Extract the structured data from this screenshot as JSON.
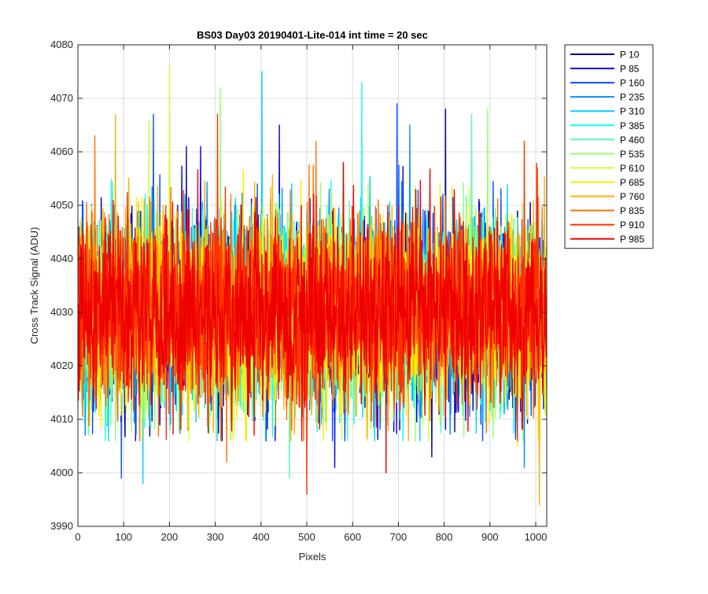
{
  "chart_data": {
    "type": "line",
    "title": "BS03 Day03 20190401-Lite-014 int time = 20 sec",
    "xlabel": "Pixels",
    "ylabel": "Cross Track Signal (ADU)",
    "xlim": [
      0,
      1024
    ],
    "ylim": [
      3990,
      4080
    ],
    "xticks": [
      "0",
      "100",
      "200",
      "300",
      "400",
      "500",
      "600",
      "700",
      "800",
      "900",
      "1000"
    ],
    "yticks": [
      "3990",
      "4000",
      "4010",
      "4020",
      "4030",
      "4040",
      "4050",
      "4060",
      "4070",
      "4080"
    ],
    "grid": true,
    "legend_position": "outside-top-right",
    "n_points": 1024,
    "mean_signal": 4030,
    "series": [
      {
        "name": "P 10",
        "color": "#00008f",
        "peaks": [
          [
            237,
            4061
          ],
          [
            803,
            4068
          ],
          [
            773,
            4003
          ]
        ]
      },
      {
        "name": "P 85",
        "color": "#0000ef",
        "peaks": [
          [
            268,
            4061
          ],
          [
            440,
            4065
          ],
          [
            561,
            4001
          ]
        ]
      },
      {
        "name": "P 160",
        "color": "#0050ff",
        "peaks": [
          [
            165,
            4067
          ],
          [
            697,
            4069
          ],
          [
            95,
            3999
          ]
        ]
      },
      {
        "name": "P 235",
        "color": "#0090ff",
        "peaks": [
          [
            725,
            4065
          ],
          [
            975,
            4001
          ]
        ]
      },
      {
        "name": "P 310",
        "color": "#00d0ff",
        "peaks": [
          [
            402,
            4075
          ],
          [
            142,
            3998
          ]
        ]
      },
      {
        "name": "P 385",
        "color": "#10ffef",
        "peaks": [
          [
            620,
            4073
          ]
        ]
      },
      {
        "name": "P 460",
        "color": "#50ffaf",
        "peaks": [
          [
            860,
            4067
          ],
          [
            462,
            3999
          ]
        ]
      },
      {
        "name": "P 535",
        "color": "#8fff70",
        "peaks": [
          [
            311,
            4072
          ],
          [
            895,
            4068
          ]
        ]
      },
      {
        "name": "P 610",
        "color": "#cfff30",
        "peaks": [
          [
            200,
            4076
          ],
          [
            155,
            4066
          ]
        ]
      },
      {
        "name": "P 685",
        "color": "#ffef00",
        "peaks": [
          [
            520,
            4060
          ],
          [
            960,
            4005
          ]
        ]
      },
      {
        "name": "P 760",
        "color": "#ffb000",
        "peaks": [
          [
            82,
            4067
          ],
          [
            1008,
            3994
          ]
        ]
      },
      {
        "name": "P 835",
        "color": "#ff7000",
        "peaks": [
          [
            37,
            4063
          ],
          [
            520,
            4062
          ],
          [
            325,
            4002
          ]
        ]
      },
      {
        "name": "P 910",
        "color": "#ff3000",
        "peaks": [
          [
            305,
            4067
          ],
          [
            975,
            4062
          ],
          [
            500,
            3996
          ]
        ]
      },
      {
        "name": "P 985",
        "color": "#ef0000",
        "peaks": [
          [
            580,
            4058
          ],
          [
            673,
            4000
          ]
        ]
      }
    ]
  }
}
